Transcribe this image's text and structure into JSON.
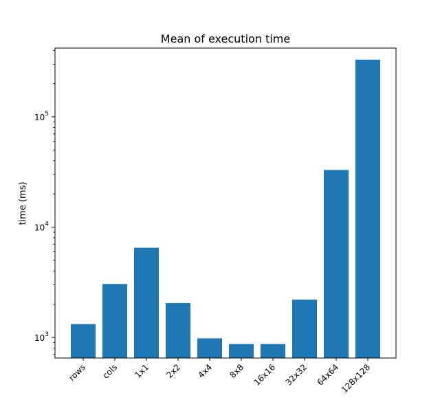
{
  "chart_data": {
    "type": "bar",
    "title": "Mean of execution time",
    "xlabel": "",
    "ylabel": "time (ms)",
    "yscale": "log",
    "ylim": [
      650,
      420000
    ],
    "grid": false,
    "categories": [
      "rows",
      "cols",
      "1x1",
      "2x2",
      "4x4",
      "8x8",
      "16x16",
      "32x32",
      "64x64",
      "128x128"
    ],
    "values": [
      1320,
      3050,
      6500,
      2050,
      980,
      870,
      870,
      2200,
      33000,
      330000
    ],
    "y_ticks": [
      {
        "value": 1000,
        "base": "10",
        "exp": "3"
      },
      {
        "value": 10000,
        "base": "10",
        "exp": "4"
      },
      {
        "value": 100000,
        "base": "10",
        "exp": "5"
      }
    ],
    "bar_color": "#1f77b4"
  }
}
